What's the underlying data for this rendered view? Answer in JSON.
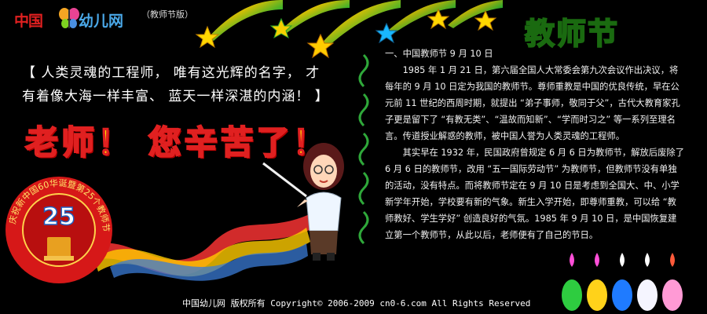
{
  "header": {
    "logo_left": "中国",
    "logo_right": "幼儿网",
    "edition": "（教师节版）"
  },
  "title": "教师节",
  "slogan": {
    "line1": "【 人类灵魂的工程师， 唯有这光辉的名字， 才",
    "line2": "有着像大海一样丰富、 蓝天一样深湛的内涵！ 】"
  },
  "greeting": "老师！ 您辛苦了！",
  "badge": {
    "ring_text": "庆祝新中国60华诞暨第25个教师节",
    "number": "25"
  },
  "article": {
    "heading": "一、中国教师节 9 月 10 日",
    "para1": "1985 年 1 月 21 日，第六届全国人大常委会第九次会议作出决议，将每年的 9 月 10 日定为我国的教师节。尊师重教是中国的优良传统，早在公元前 11 世纪的西周时期，就提出 “弟子事师，敬同于父”，古代大教育家孔子更是留下了 “有教无类”、“温故而知新”、“学而时习之” 等一系列至理名言。传道授业解惑的教师，被中国人誉为人类灵魂的工程师。",
    "para2": "其实早在 1932 年，民国政府曾规定 6 月 6 日为教师节，解放后废除了 6 月 6 日的教师节，改用 “五一国际劳动节” 为教师节，但教师节没有单独的活动，没有特点。而将教师节定在 9 月 10 日是考虑到全国大、中、小学新学年开始，学校要有新的气象。新生入学开始，即尊师重教，可以给 “教师教好、学生学好” 创造良好的气氛。1985 年 9 月 10 日，是中国恢复建立第一个教师节，从此以后，老师便有了自己的节日。"
  },
  "footer": "中国幼儿网 版权所有 Copyright© 2006-2009 cn0-6.com All Rights Reserved",
  "icons": [
    "shooting-star-icon",
    "butterfly-icon",
    "teacher-figure",
    "candle-icon",
    "ribbon-decoration",
    "swirl-divider-icon"
  ],
  "colors": {
    "background": "#000000",
    "title_green": "#7de31a",
    "greeting_yellow": "#ffe600",
    "greeting_red": "#e02020"
  }
}
